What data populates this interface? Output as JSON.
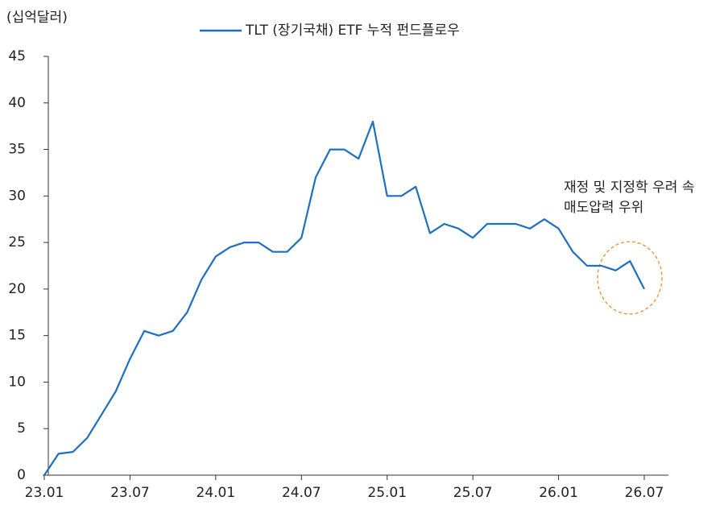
{
  "chart_data": {
    "type": "line",
    "y_label": "(십억달러)",
    "categories": [
      "23.01",
      null,
      null,
      null,
      null,
      null,
      "23.07",
      null,
      null,
      null,
      null,
      null,
      "24.01",
      null,
      null,
      null,
      null,
      null,
      "24.07",
      null,
      null,
      null,
      null,
      null,
      "25.01",
      null,
      null,
      null,
      null,
      null,
      "25.07",
      null,
      null,
      null,
      null,
      null,
      "26.01",
      null,
      null,
      null,
      null,
      null,
      "26.07"
    ],
    "series": [
      {
        "name": "TLT (장기국채) ETF 누적 펀드플로우",
        "color": "#1f6fc0",
        "values": [
          0,
          2.3,
          2.5,
          4,
          6.5,
          9,
          12.5,
          15.5,
          15,
          15.5,
          17.5,
          21,
          23.5,
          24.5,
          25,
          25,
          24,
          24,
          25.5,
          32,
          35,
          35,
          34,
          38,
          30,
          30,
          31,
          26,
          27,
          26.5,
          25.5,
          27,
          27,
          27,
          26.5,
          27.5,
          26.5,
          24,
          22.5,
          22.5,
          22,
          23,
          20
        ]
      }
    ],
    "ylim": [
      0,
      45
    ],
    "yticks": [
      0,
      5,
      10,
      15,
      20,
      25,
      30,
      35,
      40,
      45
    ],
    "annotations": [
      "재정 및 지정학 우려 속",
      "매도압력 우위"
    ],
    "legend": "top"
  }
}
